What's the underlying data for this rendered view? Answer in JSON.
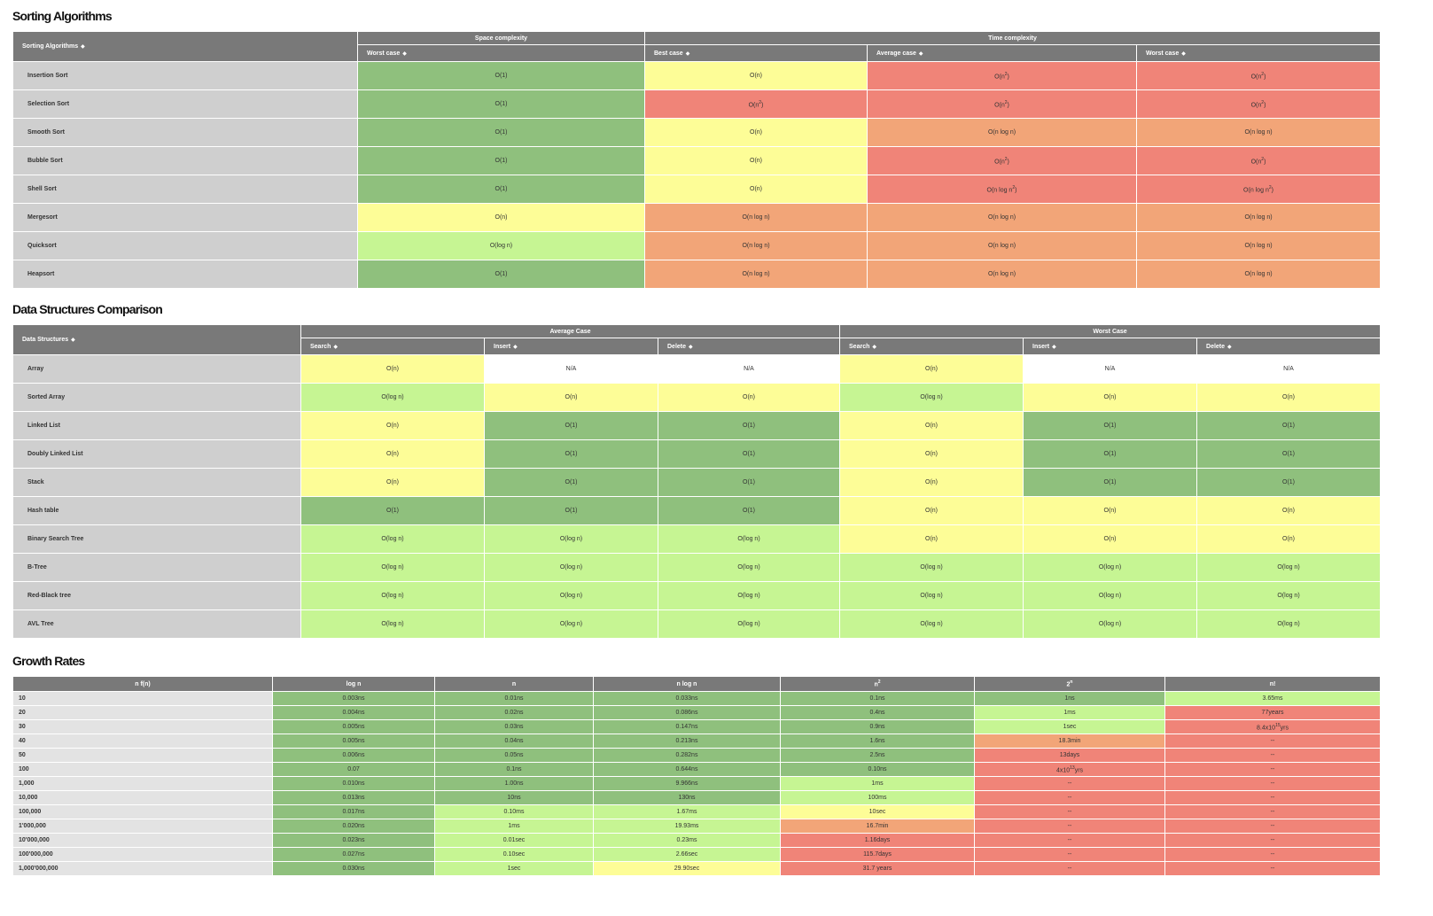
{
  "sorting": {
    "title": "Sorting Algorithms",
    "corner": "Sorting Algorithms",
    "groups": [
      {
        "label": "Space complexity",
        "span": 1
      },
      {
        "label": "Time complexity",
        "span": 3
      }
    ],
    "columns": [
      "Worst case",
      "Best case",
      "Average case",
      "Worst case"
    ],
    "rows": [
      {
        "name": "Insertion Sort",
        "cells": [
          [
            "O(1)",
            "good"
          ],
          [
            "O(n)",
            "ok"
          ],
          [
            "O(n^2)",
            "worst"
          ],
          [
            "O(n^2)",
            "worst"
          ]
        ]
      },
      {
        "name": "Selection Sort",
        "cells": [
          [
            "O(1)",
            "good"
          ],
          [
            "O(n^2)",
            "worst"
          ],
          [
            "O(n^2)",
            "worst"
          ],
          [
            "O(n^2)",
            "worst"
          ]
        ]
      },
      {
        "name": "Smooth Sort",
        "cells": [
          [
            "O(1)",
            "good"
          ],
          [
            "O(n)",
            "ok"
          ],
          [
            "O(n log n)",
            "bad"
          ],
          [
            "O(n log n)",
            "bad"
          ]
        ]
      },
      {
        "name": "Bubble Sort",
        "cells": [
          [
            "O(1)",
            "good"
          ],
          [
            "O(n)",
            "ok"
          ],
          [
            "O(n^2)",
            "worst"
          ],
          [
            "O(n^2)",
            "worst"
          ]
        ]
      },
      {
        "name": "Shell Sort",
        "cells": [
          [
            "O(1)",
            "good"
          ],
          [
            "O(n)",
            "ok"
          ],
          [
            "O(n log n^2)",
            "worst"
          ],
          [
            "O(n log n^2)",
            "worst"
          ]
        ]
      },
      {
        "name": "Mergesort",
        "cells": [
          [
            "O(n)",
            "ok"
          ],
          [
            "O(n log n)",
            "bad"
          ],
          [
            "O(n log n)",
            "bad"
          ],
          [
            "O(n log n)",
            "bad"
          ]
        ]
      },
      {
        "name": "Quicksort",
        "cells": [
          [
            "O(log n)",
            "fair"
          ],
          [
            "O(n log n)",
            "bad"
          ],
          [
            "O(n log n)",
            "bad"
          ],
          [
            "O(n log n)",
            "bad"
          ]
        ]
      },
      {
        "name": "Heapsort",
        "cells": [
          [
            "O(1)",
            "good"
          ],
          [
            "O(n log n)",
            "bad"
          ],
          [
            "O(n log n)",
            "bad"
          ],
          [
            "O(n log n)",
            "bad"
          ]
        ]
      }
    ]
  },
  "data_structures": {
    "title": "Data Structures Comparison",
    "corner": "Data Structures",
    "groups": [
      {
        "label": "Average Case",
        "span": 3
      },
      {
        "label": "Worst Case",
        "span": 3
      }
    ],
    "columns": [
      "Search",
      "Insert",
      "Delete",
      "Search",
      "Insert",
      "Delete"
    ],
    "rows": [
      {
        "name": "Array",
        "cells": [
          [
            "O(n)",
            "ok"
          ],
          [
            "N/A",
            "na"
          ],
          [
            "N/A",
            "na"
          ],
          [
            "O(n)",
            "ok"
          ],
          [
            "N/A",
            "na"
          ],
          [
            "N/A",
            "na"
          ]
        ]
      },
      {
        "name": "Sorted Array",
        "cells": [
          [
            "O(log n)",
            "fair"
          ],
          [
            "O(n)",
            "ok"
          ],
          [
            "O(n)",
            "ok"
          ],
          [
            "O(log n)",
            "fair"
          ],
          [
            "O(n)",
            "ok"
          ],
          [
            "O(n)",
            "ok"
          ]
        ]
      },
      {
        "name": "Linked List",
        "cells": [
          [
            "O(n)",
            "ok"
          ],
          [
            "O(1)",
            "good"
          ],
          [
            "O(1)",
            "good"
          ],
          [
            "O(n)",
            "ok"
          ],
          [
            "O(1)",
            "good"
          ],
          [
            "O(1)",
            "good"
          ]
        ]
      },
      {
        "name": "Doubly Linked List",
        "cells": [
          [
            "O(n)",
            "ok"
          ],
          [
            "O(1)",
            "good"
          ],
          [
            "O(1)",
            "good"
          ],
          [
            "O(n)",
            "ok"
          ],
          [
            "O(1)",
            "good"
          ],
          [
            "O(1)",
            "good"
          ]
        ]
      },
      {
        "name": "Stack",
        "cells": [
          [
            "O(n)",
            "ok"
          ],
          [
            "O(1)",
            "good"
          ],
          [
            "O(1)",
            "good"
          ],
          [
            "O(n)",
            "ok"
          ],
          [
            "O(1)",
            "good"
          ],
          [
            "O(1)",
            "good"
          ]
        ]
      },
      {
        "name": "Hash table",
        "cells": [
          [
            "O(1)",
            "good"
          ],
          [
            "O(1)",
            "good"
          ],
          [
            "O(1)",
            "good"
          ],
          [
            "O(n)",
            "ok"
          ],
          [
            "O(n)",
            "ok"
          ],
          [
            "O(n)",
            "ok"
          ]
        ]
      },
      {
        "name": "Binary Search Tree",
        "cells": [
          [
            "O(log n)",
            "fair"
          ],
          [
            "O(log n)",
            "fair"
          ],
          [
            "O(log n)",
            "fair"
          ],
          [
            "O(n)",
            "ok"
          ],
          [
            "O(n)",
            "ok"
          ],
          [
            "O(n)",
            "ok"
          ]
        ]
      },
      {
        "name": "B-Tree",
        "cells": [
          [
            "O(log n)",
            "fair"
          ],
          [
            "O(log n)",
            "fair"
          ],
          [
            "O(log n)",
            "fair"
          ],
          [
            "O(log n)",
            "fair"
          ],
          [
            "O(log n)",
            "fair"
          ],
          [
            "O(log n)",
            "fair"
          ]
        ]
      },
      {
        "name": "Red-Black tree",
        "cells": [
          [
            "O(log n)",
            "fair"
          ],
          [
            "O(log n)",
            "fair"
          ],
          [
            "O(log n)",
            "fair"
          ],
          [
            "O(log n)",
            "fair"
          ],
          [
            "O(log n)",
            "fair"
          ],
          [
            "O(log n)",
            "fair"
          ]
        ]
      },
      {
        "name": "AVL Tree",
        "cells": [
          [
            "O(log n)",
            "fair"
          ],
          [
            "O(log n)",
            "fair"
          ],
          [
            "O(log n)",
            "fair"
          ],
          [
            "O(log n)",
            "fair"
          ],
          [
            "O(log n)",
            "fair"
          ],
          [
            "O(log n)",
            "fair"
          ]
        ]
      }
    ]
  },
  "growth": {
    "title": "Growth Rates",
    "columns": [
      "n f(n)",
      "log n",
      "n",
      "n log n",
      "n^2",
      "2^n",
      "n!"
    ],
    "rows": [
      {
        "name": "10",
        "cells": [
          [
            "0.003ns",
            "good"
          ],
          [
            "0.01ns",
            "good"
          ],
          [
            "0.033ns",
            "good"
          ],
          [
            "0.1ns",
            "good"
          ],
          [
            "1ns",
            "good"
          ],
          [
            "3.65ms",
            "fair"
          ]
        ]
      },
      {
        "name": "20",
        "cells": [
          [
            "0.004ns",
            "good"
          ],
          [
            "0.02ns",
            "good"
          ],
          [
            "0.086ns",
            "good"
          ],
          [
            "0.4ns",
            "good"
          ],
          [
            "1ms",
            "fair"
          ],
          [
            "77years",
            "worst"
          ]
        ]
      },
      {
        "name": "30",
        "cells": [
          [
            "0.005ns",
            "good"
          ],
          [
            "0.03ns",
            "good"
          ],
          [
            "0.147ns",
            "good"
          ],
          [
            "0.9ns",
            "good"
          ],
          [
            "1sec",
            "fair"
          ],
          [
            "8.4x10^15yrs",
            "worst"
          ]
        ]
      },
      {
        "name": "40",
        "cells": [
          [
            "0.005ns",
            "good"
          ],
          [
            "0.04ns",
            "good"
          ],
          [
            "0.213ns",
            "good"
          ],
          [
            "1.6ns",
            "good"
          ],
          [
            "18.3min",
            "bad"
          ],
          [
            "--",
            "worst"
          ]
        ]
      },
      {
        "name": "50",
        "cells": [
          [
            "0.006ns",
            "good"
          ],
          [
            "0.05ns",
            "good"
          ],
          [
            "0.282ns",
            "good"
          ],
          [
            "2.5ns",
            "good"
          ],
          [
            "13days",
            "worst"
          ],
          [
            "--",
            "worst"
          ]
        ]
      },
      {
        "name": "100",
        "cells": [
          [
            "0.07",
            "good"
          ],
          [
            "0.1ns",
            "good"
          ],
          [
            "0.644ns",
            "good"
          ],
          [
            "0.10ns",
            "good"
          ],
          [
            "4x10^13yrs",
            "worst"
          ],
          [
            "--",
            "worst"
          ]
        ]
      },
      {
        "name": "1,000",
        "cells": [
          [
            "0.010ns",
            "good"
          ],
          [
            "1.00ns",
            "good"
          ],
          [
            "9.966ns",
            "good"
          ],
          [
            "1ms",
            "fair"
          ],
          [
            "--",
            "worst"
          ],
          [
            "--",
            "worst"
          ]
        ]
      },
      {
        "name": "10,000",
        "cells": [
          [
            "0.013ns",
            "good"
          ],
          [
            "10ns",
            "good"
          ],
          [
            "130ns",
            "good"
          ],
          [
            "100ms",
            "fair"
          ],
          [
            "--",
            "worst"
          ],
          [
            "--",
            "worst"
          ]
        ]
      },
      {
        "name": "100,000",
        "cells": [
          [
            "0.017ns",
            "good"
          ],
          [
            "0.10ms",
            "fair"
          ],
          [
            "1.67ms",
            "fair"
          ],
          [
            "10sec",
            "ok"
          ],
          [
            "--",
            "worst"
          ],
          [
            "--",
            "worst"
          ]
        ]
      },
      {
        "name": "1'000,000",
        "cells": [
          [
            "0.020ns",
            "good"
          ],
          [
            "1ms",
            "fair"
          ],
          [
            "19.93ms",
            "fair"
          ],
          [
            "16.7min",
            "bad"
          ],
          [
            "--",
            "worst"
          ],
          [
            "--",
            "worst"
          ]
        ]
      },
      {
        "name": "10'000,000",
        "cells": [
          [
            "0.023ns",
            "good"
          ],
          [
            "0.01sec",
            "fair"
          ],
          [
            "0.23ms",
            "fair"
          ],
          [
            "1.16days",
            "worst"
          ],
          [
            "--",
            "worst"
          ],
          [
            "--",
            "worst"
          ]
        ]
      },
      {
        "name": "100'000,000",
        "cells": [
          [
            "0.027ns",
            "good"
          ],
          [
            "0.10sec",
            "fair"
          ],
          [
            "2.66sec",
            "fair"
          ],
          [
            "115.7days",
            "worst"
          ],
          [
            "--",
            "worst"
          ],
          [
            "--",
            "worst"
          ]
        ]
      },
      {
        "name": "1,000'000,000",
        "cells": [
          [
            "0.030ns",
            "good"
          ],
          [
            "1sec",
            "fair"
          ],
          [
            "29.90sec",
            "ok"
          ],
          [
            "31.7 years",
            "worst"
          ],
          [
            "--",
            "worst"
          ],
          [
            "--",
            "worst"
          ]
        ]
      }
    ]
  },
  "icons": {
    "sort": "sort-icon"
  },
  "colors": {
    "header": "#797979",
    "name_cell": "#cfcfcf",
    "good": "#8fc07d",
    "fair": "#c6f593",
    "ok": "#fdfd97",
    "bad": "#f2a578",
    "worst": "#f08478",
    "na": "#ffffff"
  }
}
